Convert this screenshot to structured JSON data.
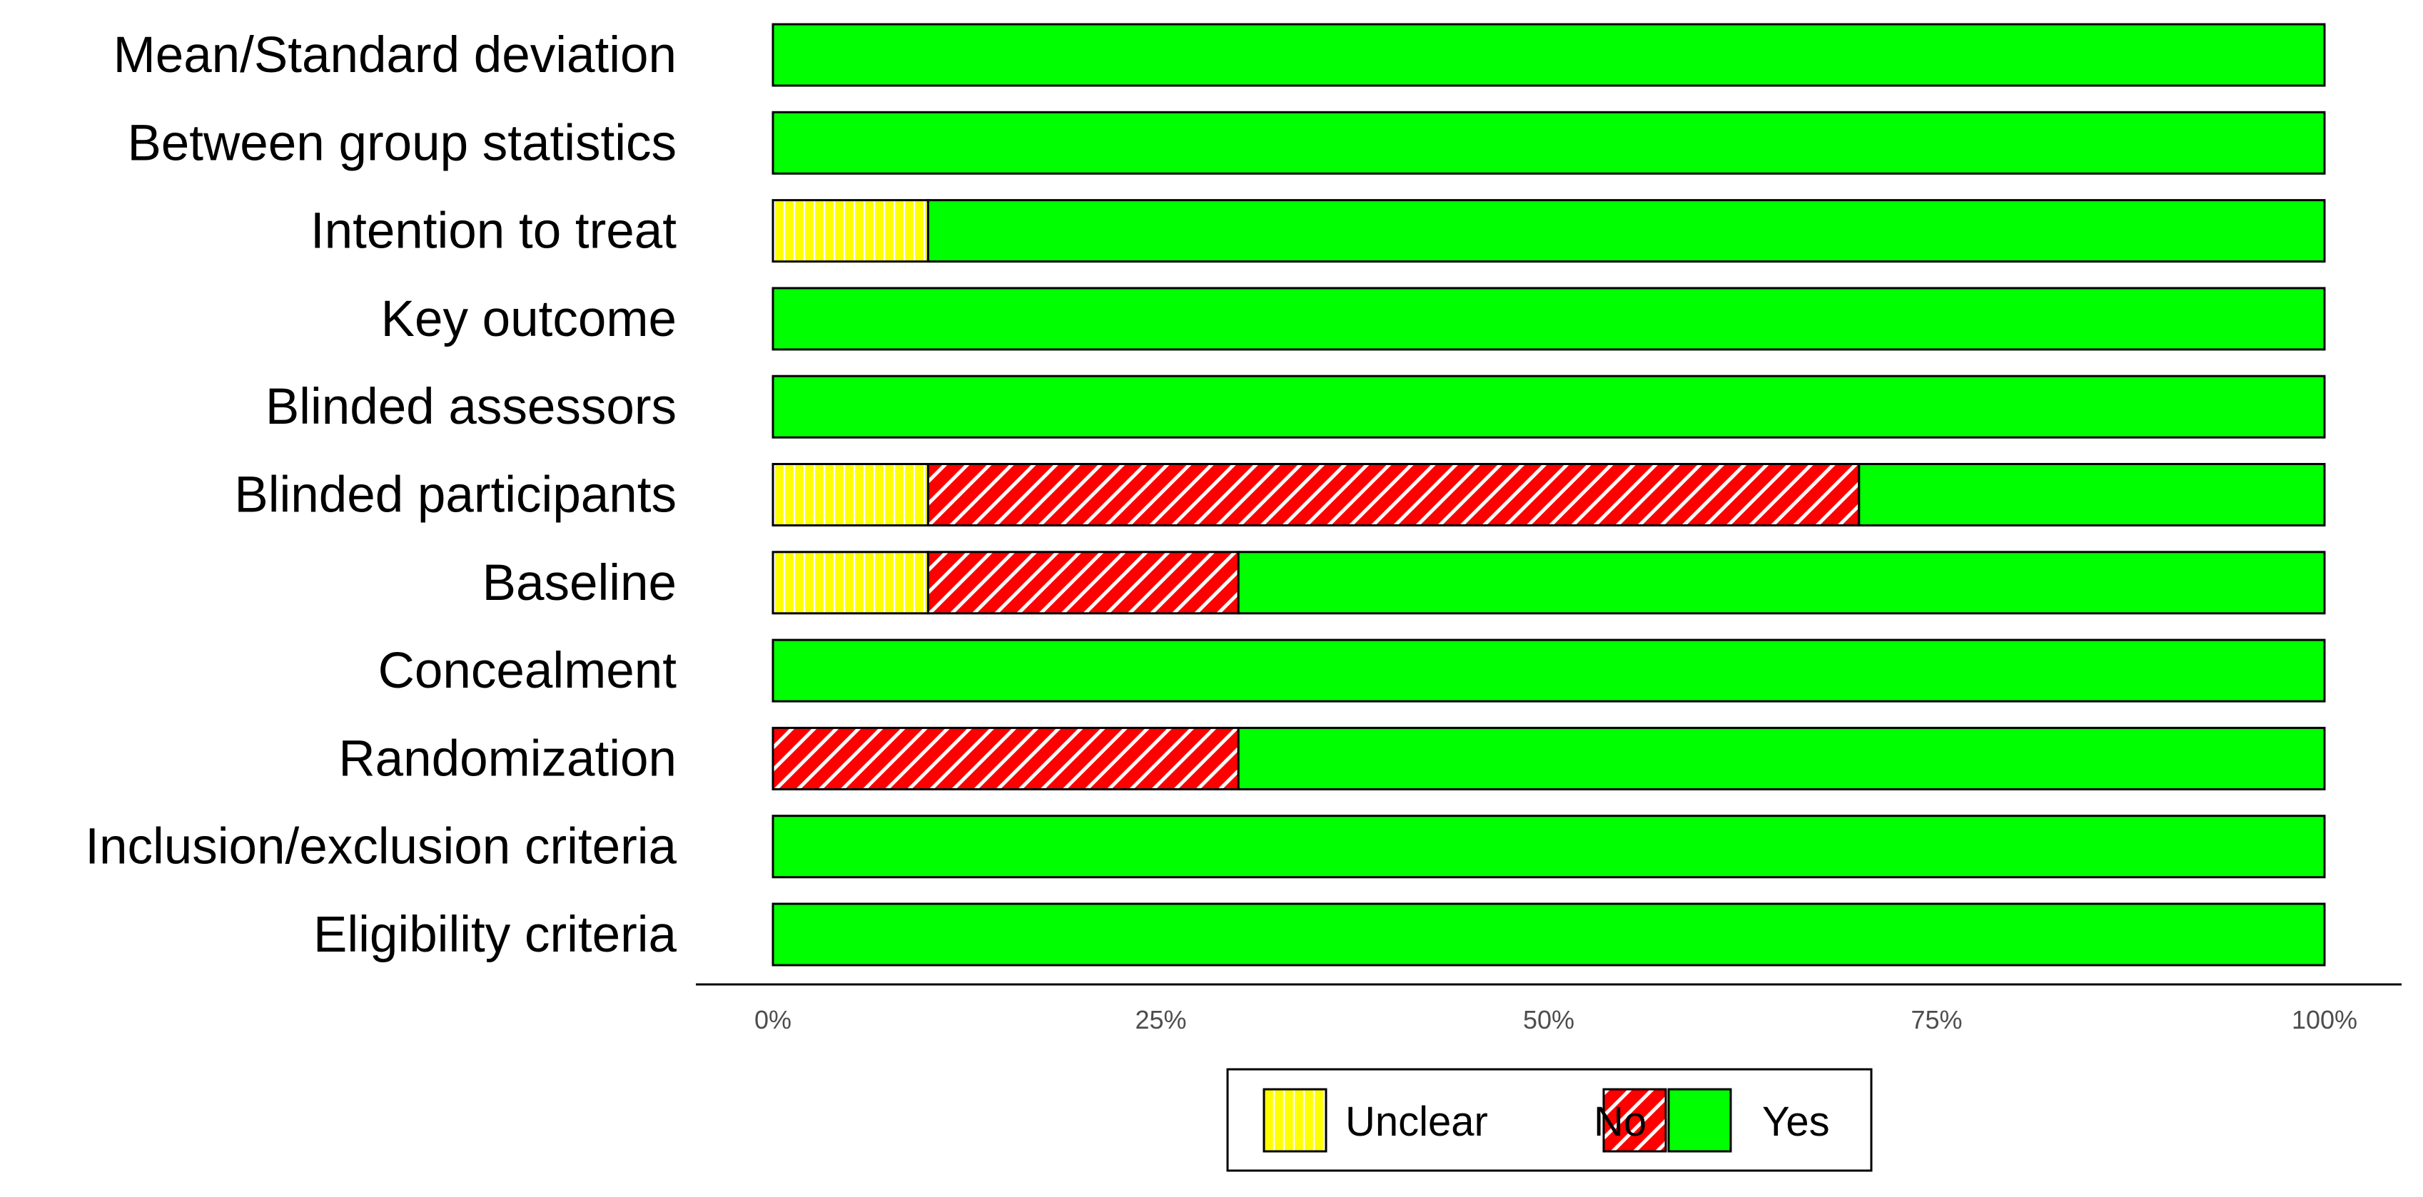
{
  "chart_data": {
    "type": "bar",
    "orientation": "horizontal",
    "stacked": true,
    "categories": [
      "Mean/Standard deviation",
      "Between group statistics",
      "Intention to treat",
      "Key outcome",
      "Blinded assessors",
      "Blinded participants",
      "Baseline",
      "Concealment",
      "Randomization",
      "Inclusion/exclusion criteria",
      "Eligibility criteria"
    ],
    "series": [
      {
        "name": "Unclear",
        "color": "#ffff00",
        "pattern": "vertical-lines",
        "values": [
          0,
          0,
          10,
          0,
          0,
          10,
          10,
          0,
          0,
          0,
          0
        ]
      },
      {
        "name": "No",
        "color": "#ff0000",
        "pattern": "diagonal-lines",
        "values": [
          0,
          0,
          0,
          0,
          0,
          60,
          20,
          0,
          30,
          0,
          0
        ]
      },
      {
        "name": "Yes",
        "color": "#00ff00",
        "pattern": "solid",
        "values": [
          100,
          100,
          90,
          100,
          100,
          30,
          70,
          100,
          70,
          100,
          100
        ]
      }
    ],
    "xlim": [
      0,
      100
    ],
    "x_ticks": [
      "0%",
      "25%",
      "50%",
      "75%",
      "100%"
    ],
    "title": "",
    "xlabel": "",
    "ylabel": "",
    "grid": false,
    "legend_position": "bottom"
  }
}
